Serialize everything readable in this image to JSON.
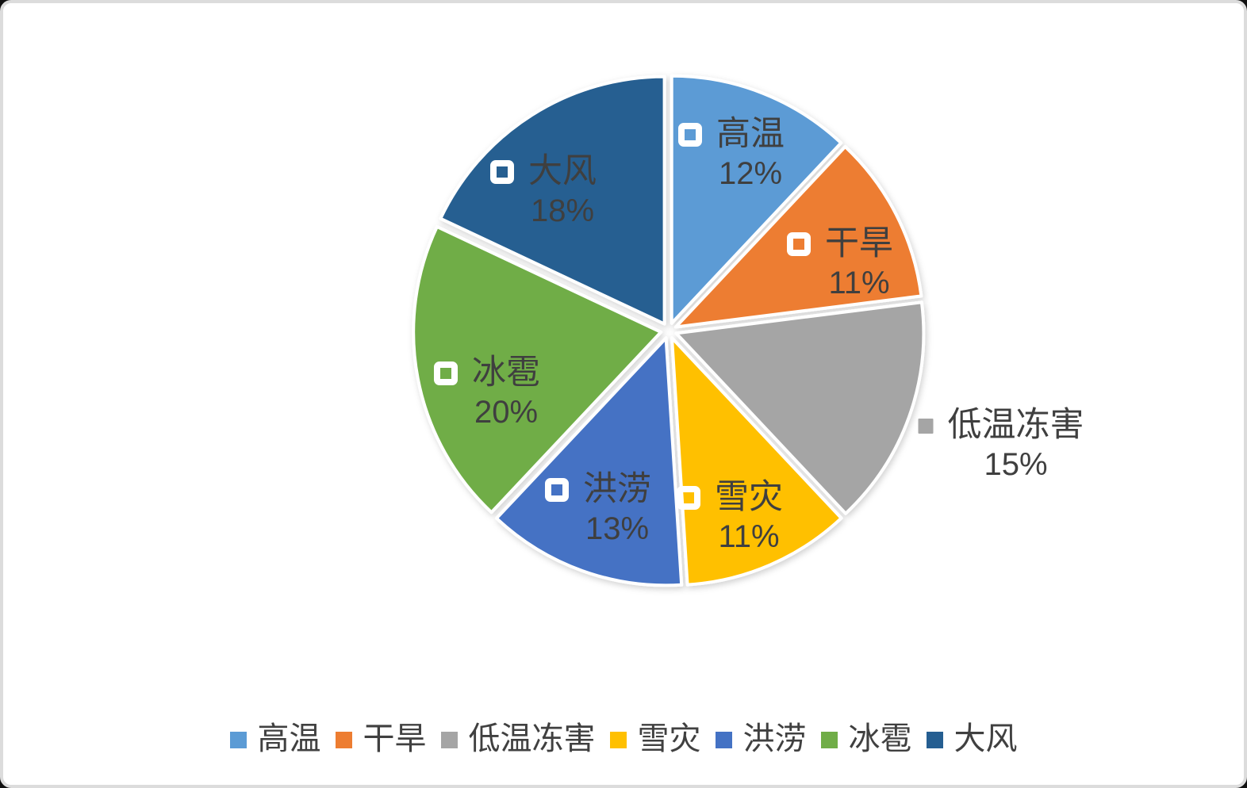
{
  "chart_data": {
    "type": "pie",
    "title": "",
    "categories": [
      "高温",
      "干旱",
      "低温冻害",
      "雪灾",
      "洪涝",
      "冰雹",
      "大风"
    ],
    "values": [
      12,
      11,
      15,
      11,
      13,
      20,
      18
    ],
    "percent_labels": [
      "12%",
      "11%",
      "15%",
      "11%",
      "13%",
      "20%",
      "18%"
    ],
    "colors": [
      "#5B9BD5",
      "#ED7D31",
      "#A5A5A5",
      "#FFC000",
      "#4472C4",
      "#70AD47",
      "#255E91"
    ],
    "label_positions": [
      "inside",
      "inside",
      "outside",
      "inside",
      "inside",
      "inside",
      "inside"
    ],
    "slice_border_color": "#FFFFFF",
    "label_text_color": "#3F3F3F",
    "legend_position": "bottom",
    "start_angle_deg": 0,
    "direction": "clockwise"
  }
}
